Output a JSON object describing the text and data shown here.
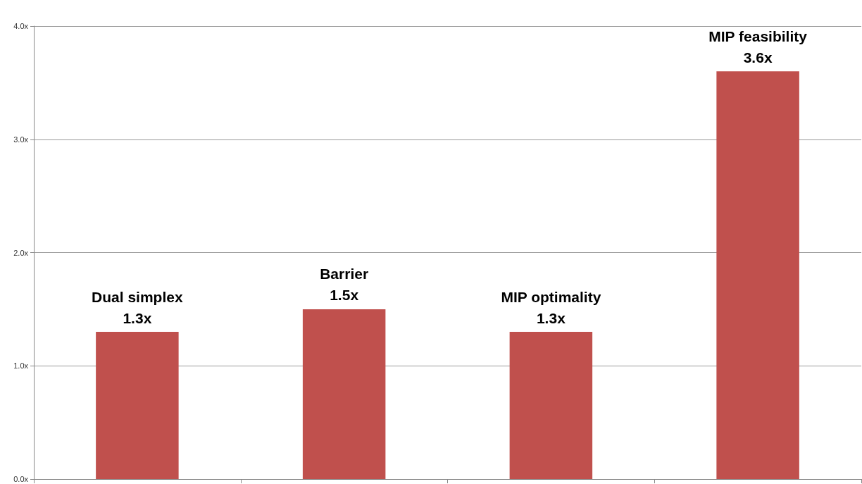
{
  "chart_data": {
    "type": "bar",
    "categories": [
      "Dual simplex",
      "Barrier",
      "MIP optimality",
      "MIP feasibility"
    ],
    "values": [
      1.3,
      1.5,
      1.3,
      3.6
    ],
    "value_labels": [
      "1.3x",
      "1.5x",
      "1.3x",
      "3.6x"
    ],
    "color": "#c0504d",
    "ylim": [
      0,
      4
    ],
    "yticks": [
      {
        "value": 0,
        "label": "0.0x"
      },
      {
        "value": 1,
        "label": "1.0x"
      },
      {
        "value": 2,
        "label": "2.0x"
      },
      {
        "value": 3,
        "label": "3.0x"
      },
      {
        "value": 4,
        "label": "4.0x"
      }
    ],
    "grid": "y",
    "tick_labels": "y"
  }
}
